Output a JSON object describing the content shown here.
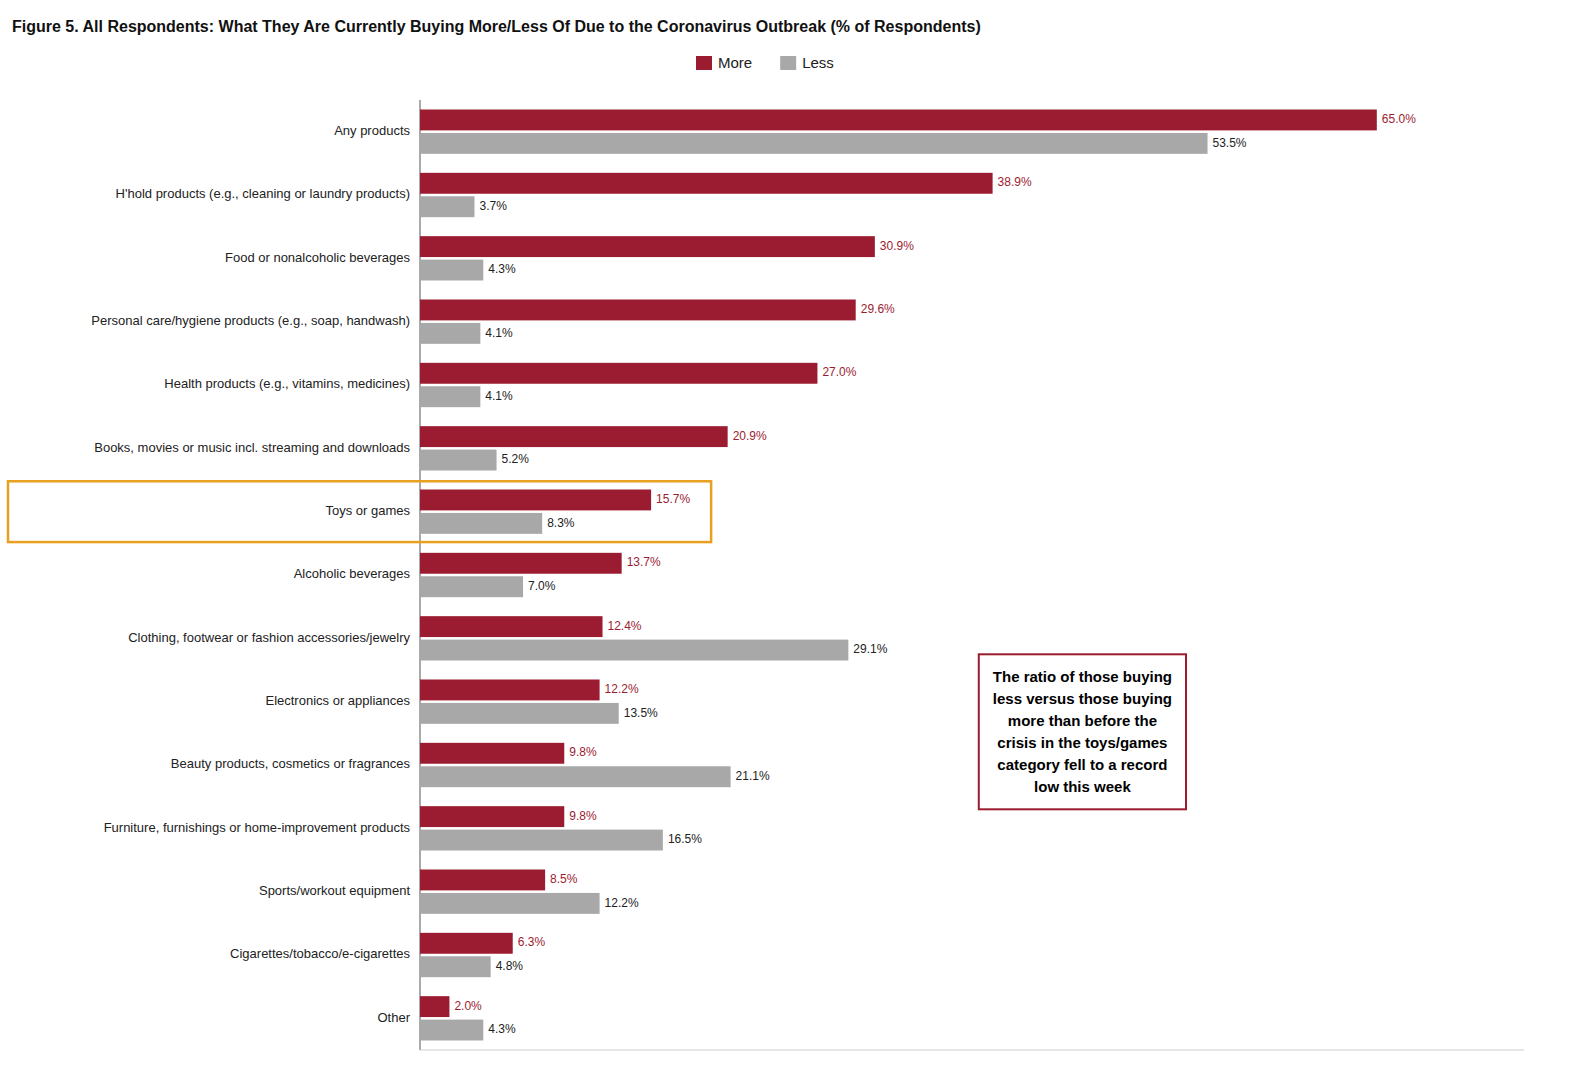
{
  "chart_data": {
    "type": "bar",
    "orientation": "horizontal",
    "title": "Figure 5. All Respondents: What They Are Currently Buying More/Less Of Due to the Coronavirus Outbreak (% of Respondents)",
    "categories": [
      "Any products",
      "H'hold products (e.g., cleaning or laundry products)",
      "Food or nonalcoholic beverages",
      "Personal care/hygiene products (e.g., soap, handwash)",
      "Health products (e.g., vitamins, medicines)",
      "Books, movies or music incl. streaming and downloads",
      "Toys or games",
      "Alcoholic beverages",
      "Clothing, footwear or fashion accessories/jewelry",
      "Electronics or appliances",
      "Beauty products, cosmetics or fragrances",
      "Furniture, furnishings or home-improvement products",
      "Sports/workout equipment",
      "Cigarettes/tobacco/e-cigarettes",
      "Other"
    ],
    "series": [
      {
        "name": "More",
        "color": "#9b1c31",
        "values": [
          65.0,
          38.9,
          30.9,
          29.6,
          27.0,
          20.9,
          15.7,
          13.7,
          12.4,
          12.2,
          9.8,
          9.8,
          8.5,
          6.3,
          2.0
        ],
        "value_labels": [
          "65.0%",
          "38.9%",
          "30.9%",
          "29.6%",
          "27.0%",
          "20.9%",
          "15.7%",
          "13.7%",
          "12.4%",
          "12.2%",
          "9.8%",
          "9.8%",
          "8.5%",
          "6.3%",
          "2.0%"
        ]
      },
      {
        "name": "Less",
        "color": "#a8a8a8",
        "values": [
          53.5,
          3.7,
          4.3,
          4.1,
          4.1,
          5.2,
          8.3,
          7.0,
          29.1,
          13.5,
          21.1,
          16.5,
          12.2,
          4.8,
          4.3
        ],
        "value_labels": [
          "53.5%",
          "3.7%",
          "4.3%",
          "4.1%",
          "4.1%",
          "5.2%",
          "8.3%",
          "7.0%",
          "29.1%",
          "13.5%",
          "21.1%",
          "16.5%",
          "12.2%",
          "4.8%",
          "4.3%"
        ]
      }
    ],
    "xlim": [
      0,
      75
    ],
    "tick_labels": "y",
    "grid": false,
    "legend": "top",
    "data_labels": true,
    "annotations": [
      {
        "text": "The ratio of those buying\nless versus those buying\nmore than before the\ncrisis in the toys/games\ncategory fell to a record\nlow this week",
        "category": "Toys or games",
        "color": "#e8a020"
      }
    ]
  }
}
